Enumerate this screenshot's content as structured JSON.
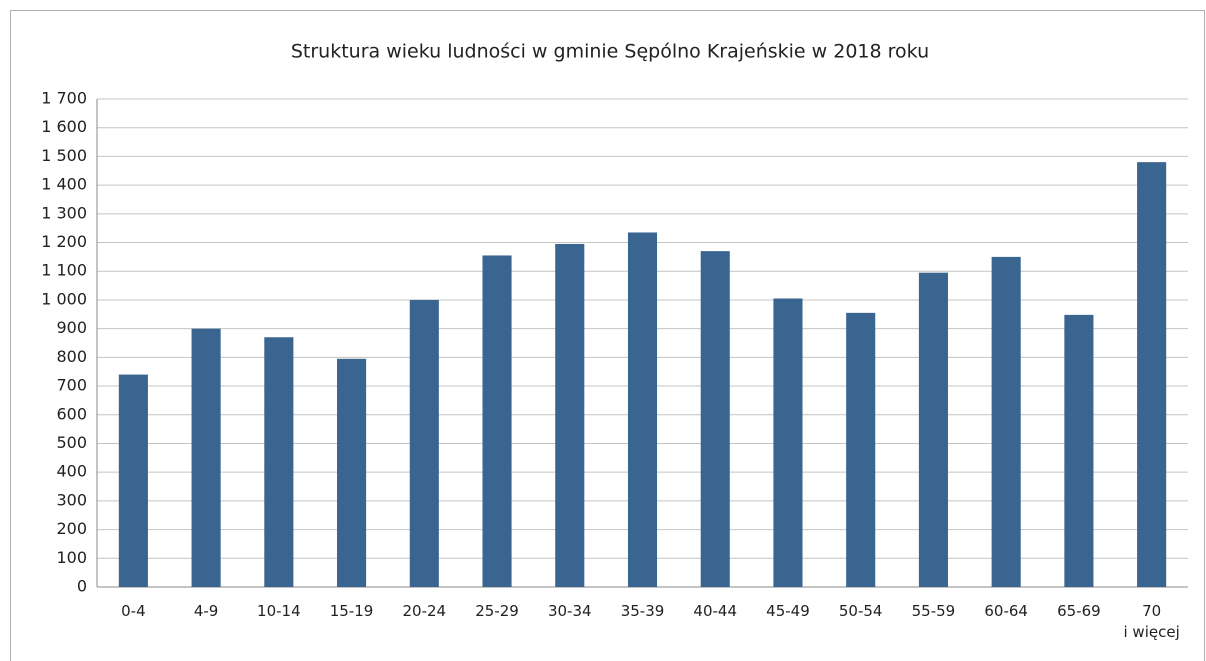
{
  "chart_data": {
    "type": "bar",
    "title": "Struktura wieku ludności w gminie Sępólno Krajeńskie w 2018 roku",
    "categories": [
      "0-4",
      "4-9",
      "10-14",
      "15-19",
      "20-24",
      "25-29",
      "30-34",
      "35-39",
      "40-44",
      "45-49",
      "50-54",
      "55-59",
      "60-64",
      "65-69",
      "70\ni więcej"
    ],
    "values": [
      740,
      900,
      870,
      795,
      1000,
      1155,
      1195,
      1235,
      1170,
      1005,
      955,
      1095,
      1150,
      948,
      1480
    ],
    "color": "#3a6590",
    "ylim": [
      0,
      1700
    ],
    "yticks": [
      0,
      100,
      200,
      300,
      400,
      500,
      600,
      700,
      800,
      900,
      {
        "value": 1000,
        "label": "1 000"
      },
      {
        "value": 1100,
        "label": "1 100"
      },
      {
        "value": 1200,
        "label": "1 200"
      },
      {
        "value": 1300,
        "label": "1 300"
      },
      {
        "value": 1400,
        "label": "1 400"
      },
      {
        "value": 1500,
        "label": "1 500"
      },
      {
        "value": 1600,
        "label": "1 600"
      },
      {
        "value": 1700,
        "label": "1 700"
      }
    ],
    "grid": true
  }
}
